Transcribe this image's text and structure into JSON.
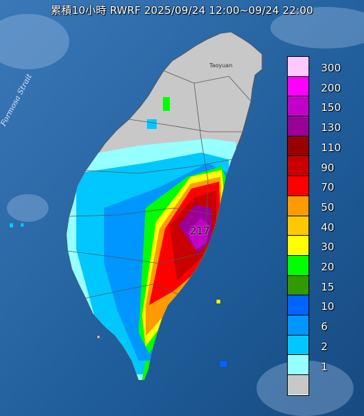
{
  "title": "累積10小時 RWRF 2025/09/24 12:00~09/24 22:00",
  "strait_label": "Formosa Strait",
  "city_label": "Taoyuan",
  "max_value_label": "217",
  "legend": [
    {
      "label": "300",
      "color": "#ffc8ff"
    },
    {
      "label": "200",
      "color": "#ff00ff"
    },
    {
      "label": "150",
      "color": "#c400c8"
    },
    {
      "label": "130",
      "color": "#9a0098"
    },
    {
      "label": "110",
      "color": "#9a0000"
    },
    {
      "label": "90",
      "color": "#c80000"
    },
    {
      "label": "70",
      "color": "#ff0000"
    },
    {
      "label": "50",
      "color": "#ff9a00"
    },
    {
      "label": "40",
      "color": "#ffc800"
    },
    {
      "label": "30",
      "color": "#ffff00"
    },
    {
      "label": "20",
      "color": "#00ff00"
    },
    {
      "label": "15",
      "color": "#329a00"
    },
    {
      "label": "10",
      "color": "#0064ff"
    },
    {
      "label": "6",
      "color": "#0096ff"
    },
    {
      "label": "2",
      "color": "#00c8ff"
    },
    {
      "label": "1",
      "color": "#96ffff"
    },
    {
      "label": "",
      "color": "#c8c8c8"
    }
  ]
}
